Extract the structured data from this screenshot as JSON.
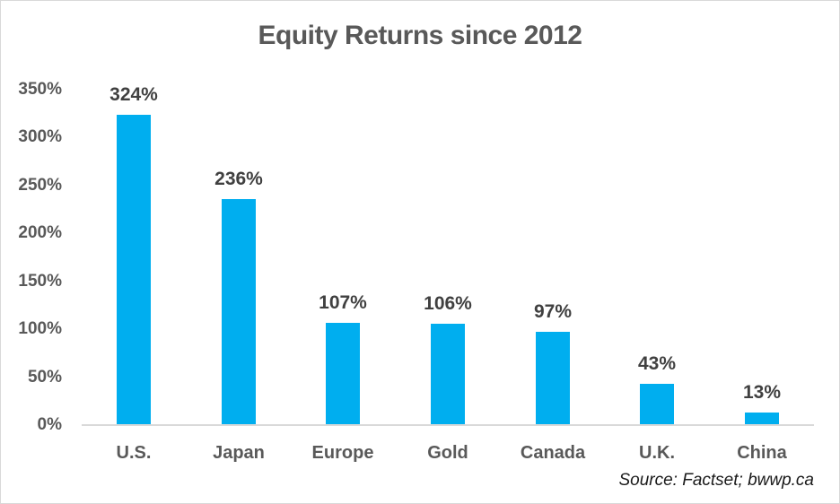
{
  "chart_data": {
    "type": "bar",
    "title": "Equity Returns since 2012",
    "categories": [
      "U.S.",
      "Japan",
      "Europe",
      "Gold",
      "Canada",
      "U.K.",
      "China"
    ],
    "values": [
      324,
      236,
      107,
      106,
      97,
      43,
      13
    ],
    "data_labels": [
      "324%",
      "236%",
      "107%",
      "106%",
      "97%",
      "43%",
      "13%"
    ],
    "xlabel": "",
    "ylabel": "",
    "ylim": [
      0,
      350
    ],
    "yticks": [
      0,
      50,
      100,
      150,
      200,
      250,
      300,
      350
    ],
    "ytick_labels": [
      "0%",
      "50%",
      "100%",
      "150%",
      "200%",
      "250%",
      "300%",
      "350%"
    ],
    "grid": "off",
    "legend": "none",
    "source": "Source: Factset; bwwp.ca"
  },
  "colors": {
    "bar": "#00AEEF",
    "title_text": "#595959",
    "tick_text": "#595959",
    "category_text": "#595959",
    "data_label_text": "#404040",
    "axis_line": "#d9d9d9",
    "source_text": "#1a1a1a",
    "background": "#ffffff"
  }
}
